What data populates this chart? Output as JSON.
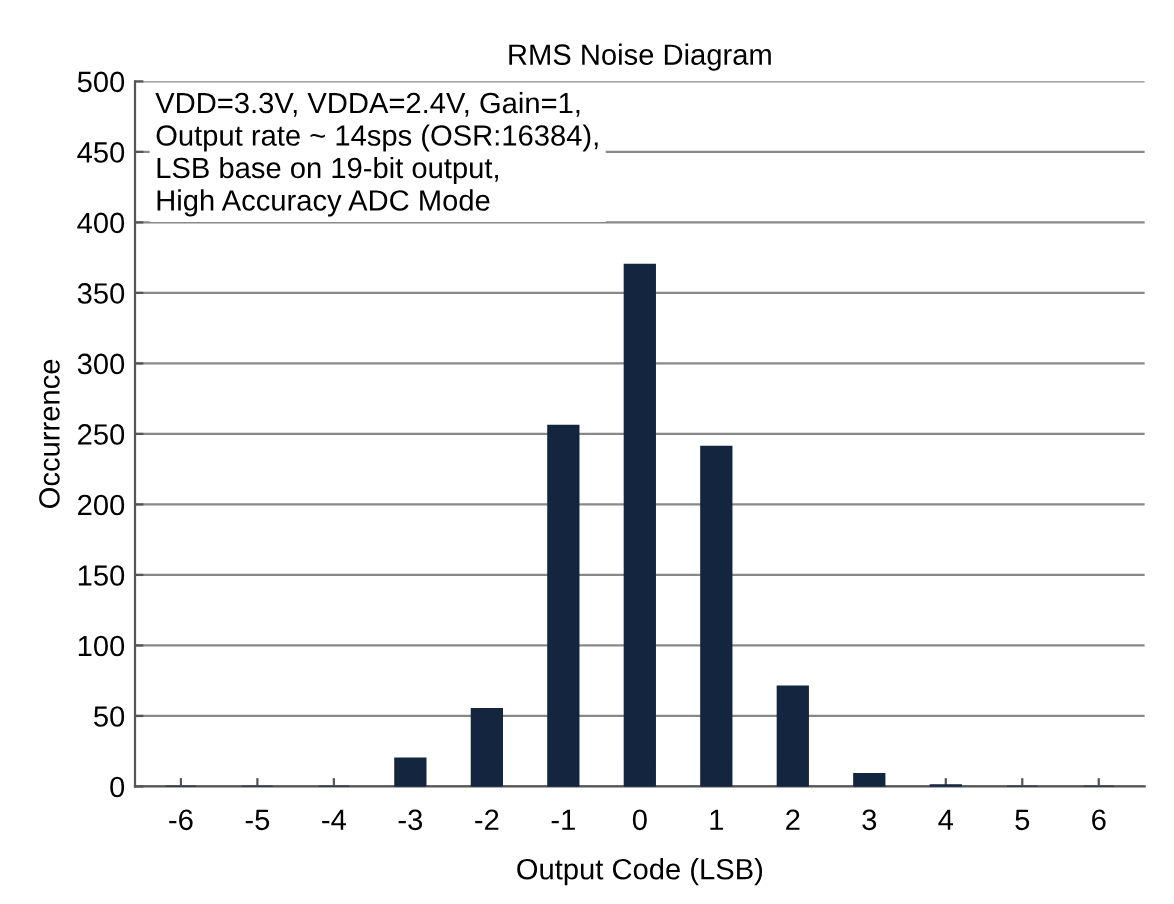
{
  "chart_data": {
    "type": "bar",
    "title": "RMS Noise Diagram",
    "xlabel": "Output Code (LSB)",
    "ylabel": "Occurrence",
    "categories": [
      "-6",
      "-5",
      "-4",
      "-3",
      "-2",
      "-1",
      "0",
      "1",
      "2",
      "3",
      "4",
      "5",
      "6"
    ],
    "values": [
      0,
      0,
      0,
      20,
      55,
      256,
      370,
      241,
      71,
      9,
      1,
      0,
      0
    ],
    "color": "#13253f",
    "ylim": [
      0,
      500
    ],
    "yticks": [
      0,
      50,
      100,
      150,
      200,
      250,
      300,
      350,
      400,
      450,
      500
    ],
    "grid": "y",
    "annotations": [
      "VDD=3.3V, VDDA=2.4V, Gain=1,\nOutput rate ~ 14sps (OSR:16384),\nLSB base on 19-bit output,\nHigh Accuracy ADC Mode"
    ]
  }
}
